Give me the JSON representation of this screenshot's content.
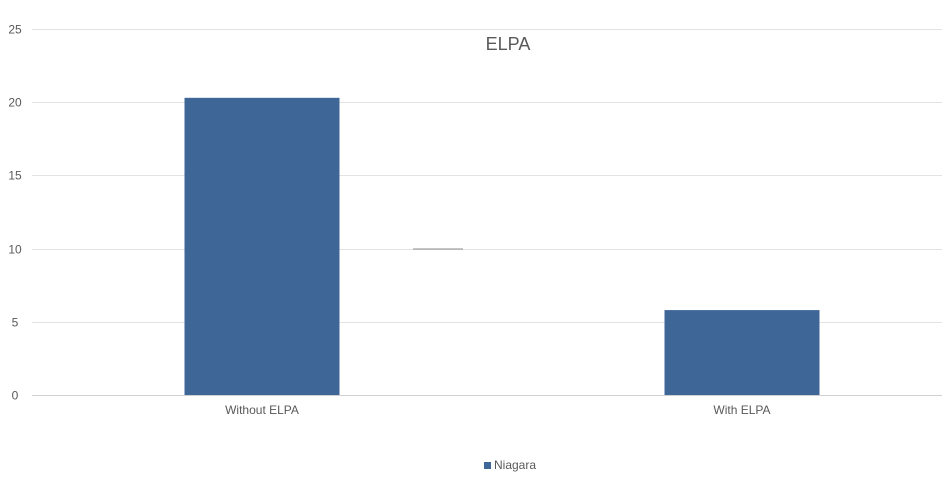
{
  "chart_data": {
    "type": "bar",
    "title": "ELPA",
    "categories": [
      "Without ELPA",
      "With ELPA"
    ],
    "series": [
      {
        "name": "Niagara",
        "values": [
          20.3,
          5.8
        ],
        "color": "#3e6798"
      }
    ],
    "ylim": [
      0,
      25
    ],
    "yticks": [
      0,
      5,
      10,
      15,
      20,
      25
    ],
    "grid": true,
    "legend": "bottom-center",
    "gridline_color": "#e3e3e3",
    "text_color": "#595959"
  }
}
